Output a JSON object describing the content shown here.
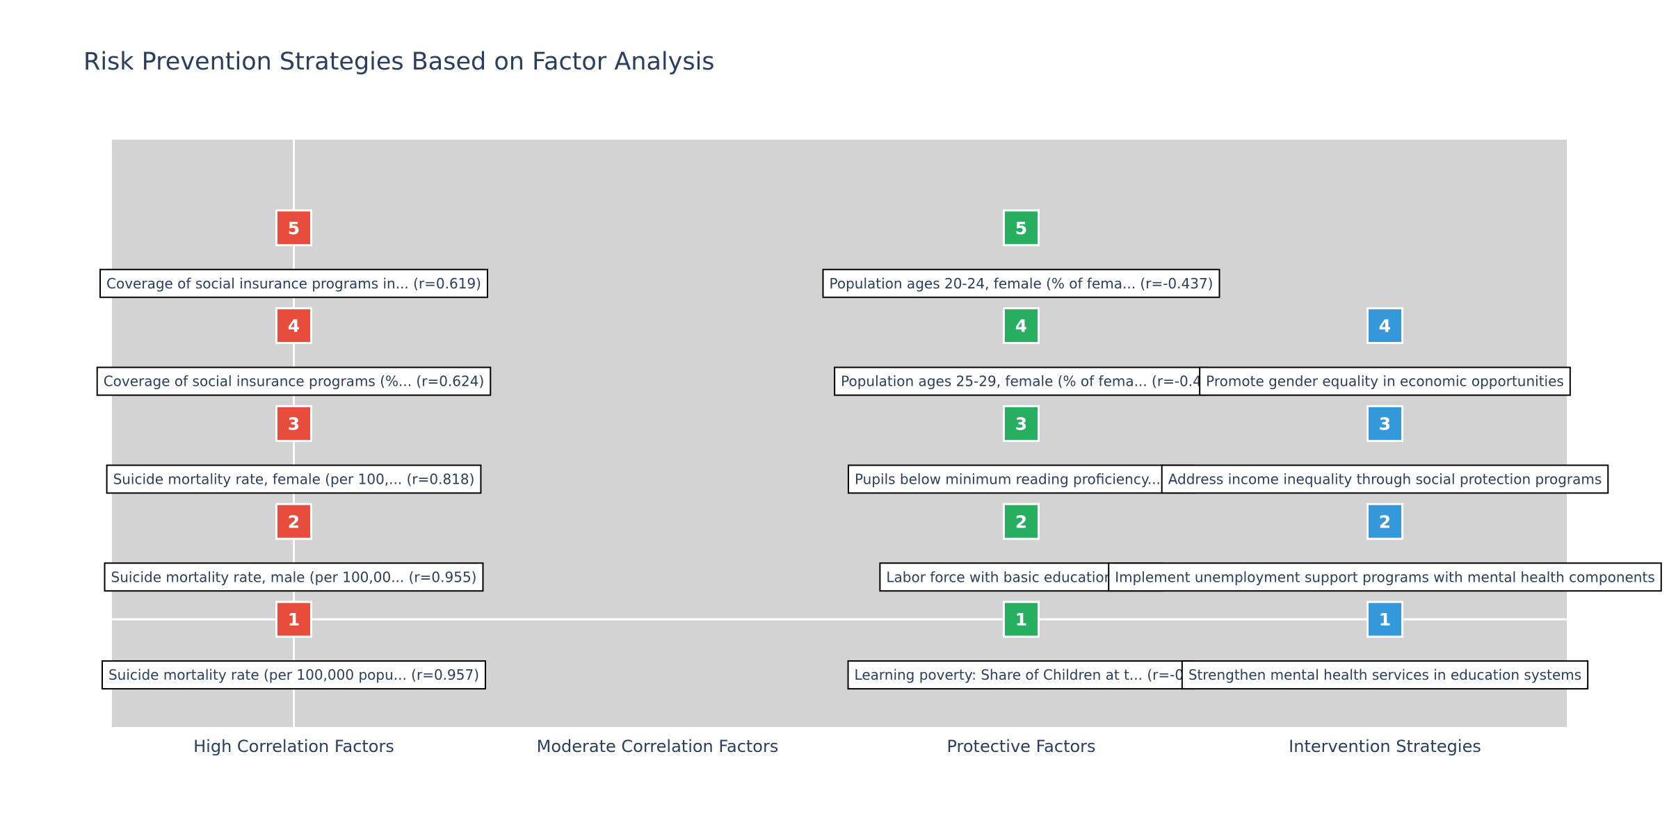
{
  "chart_data": {
    "type": "scatter",
    "title": "Risk Prevention Strategies Based on Factor Analysis",
    "categories": [
      "High Correlation Factors",
      "Moderate Correlation Factors",
      "Protective Factors",
      "Intervention Strategies"
    ],
    "ylim": [
      -0.1,
      5.9
    ],
    "grid": false,
    "legend": "none",
    "series": [
      {
        "category": "High Correlation Factors",
        "color": "#e74c3c",
        "points": [
          {
            "rank": 1,
            "label": "Suicide mortality rate (per 100,000 popu... (r=0.957)"
          },
          {
            "rank": 2,
            "label": "Suicide mortality rate, male (per 100,00... (r=0.955)"
          },
          {
            "rank": 3,
            "label": "Suicide mortality rate, female (per 100,... (r=0.818)"
          },
          {
            "rank": 4,
            "label": "Coverage of social insurance programs (%... (r=0.624)"
          },
          {
            "rank": 5,
            "label": "Coverage of social insurance programs in... (r=0.619)"
          }
        ]
      },
      {
        "category": "Protective Factors",
        "color": "#27ae60",
        "points": [
          {
            "rank": 1,
            "label": "Learning poverty: Share of Children at t... (r=-0."
          },
          {
            "rank": 2,
            "label": "Labor force with basic education, male"
          },
          {
            "rank": 3,
            "label": "Pupils below minimum reading proficiency... (r="
          },
          {
            "rank": 4,
            "label": "Population ages 25-29, female (% of fema... (r=-0.4"
          },
          {
            "rank": 5,
            "label": "Population ages 20-24, female (% of fema... (r=-0.437)"
          }
        ]
      },
      {
        "category": "Intervention Strategies",
        "color": "#3498db",
        "points": [
          {
            "rank": 1,
            "label": "Strengthen mental health services in education systems"
          },
          {
            "rank": 2,
            "label": "Implement unemployment support programs with mental health components"
          },
          {
            "rank": 3,
            "label": "Address income inequality through social protection programs"
          },
          {
            "rank": 4,
            "label": "Promote gender equality in economic opportunities"
          }
        ]
      }
    ]
  }
}
